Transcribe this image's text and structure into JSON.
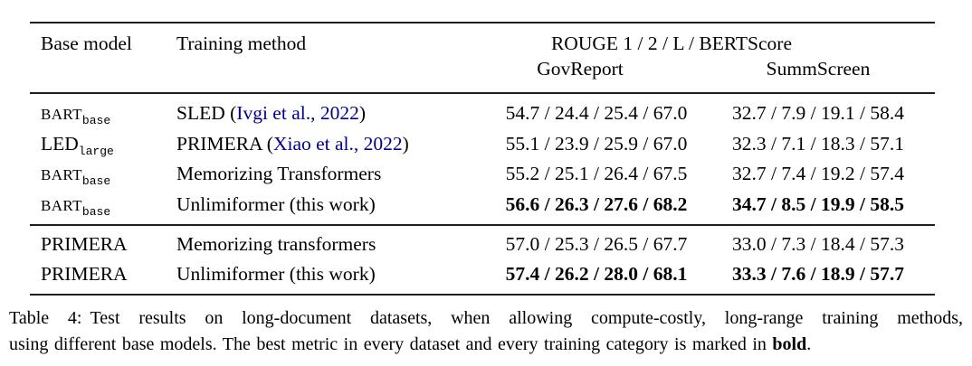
{
  "colors": {
    "background": "#ffffff",
    "text": "#000000",
    "rule": "#1f1f1f",
    "citation_link": "#00008b"
  },
  "table": {
    "header": {
      "base_model": "Base model",
      "training_method": "Training method",
      "metrics_group": "ROUGE 1 / 2 / L / BERTScore",
      "dataset_left": "GovReport",
      "dataset_right": "SummScreen"
    },
    "sections": [
      {
        "rows": [
          {
            "base_model": "BART",
            "base_model_sub": "base",
            "method": "SLED (",
            "citation": "Ivgi et al., 2022",
            "method_end": ")",
            "govreport": "54.7 / 24.4 / 25.4 / 67.0",
            "summscreen": "32.7 / 7.9 / 19.1 / 58.4"
          },
          {
            "base_model": "LED",
            "base_model_sub": "large",
            "method": "PRIMERA (",
            "citation": "Xiao et al., 2022",
            "method_end": ")",
            "govreport": "55.1 / 23.9 / 25.9 / 67.0",
            "summscreen": "32.3 / 7.1 / 18.3 / 57.1"
          },
          {
            "base_model": "BART",
            "base_model_sub": "base",
            "method": "Memorizing Transformers",
            "citation": "",
            "method_end": "",
            "govreport": "55.2 / 25.1 / 26.4 / 67.5",
            "summscreen": "32.7 / 7.4 / 19.2 / 57.4"
          },
          {
            "base_model": "BART",
            "base_model_sub": "base",
            "method": "Unlimiformer (this work)",
            "citation": "",
            "method_end": "",
            "govreport": "56.6 / 26.3 / 27.6 / 68.2",
            "summscreen": "34.7 / 8.5 / 19.9 / 58.5"
          }
        ]
      },
      {
        "rows": [
          {
            "base_model": "PRIMERA",
            "base_model_sub": "",
            "method": "Memorizing transformers",
            "citation": "",
            "method_end": "",
            "govreport": "57.0 / 25.3 / 26.5 / 67.7",
            "summscreen": "33.0 / 7.3 / 18.4 / 57.3"
          },
          {
            "base_model": "PRIMERA",
            "base_model_sub": "",
            "method": "Unlimiformer (this work)",
            "citation": "",
            "method_end": "",
            "govreport": "57.4 / 26.2 / 28.0 / 68.1",
            "summscreen": "33.3 / 7.6 / 18.9 / 57.7"
          }
        ]
      }
    ]
  },
  "caption": {
    "label": "Table 4:",
    "line1": "Test results on long-document datasets, when allowing compute-costly, long-range training methods,",
    "line2": "using different base models. The best metric in every dataset and every training category is marked in ",
    "line2_bold": "bold",
    "line2_suffix": "."
  }
}
